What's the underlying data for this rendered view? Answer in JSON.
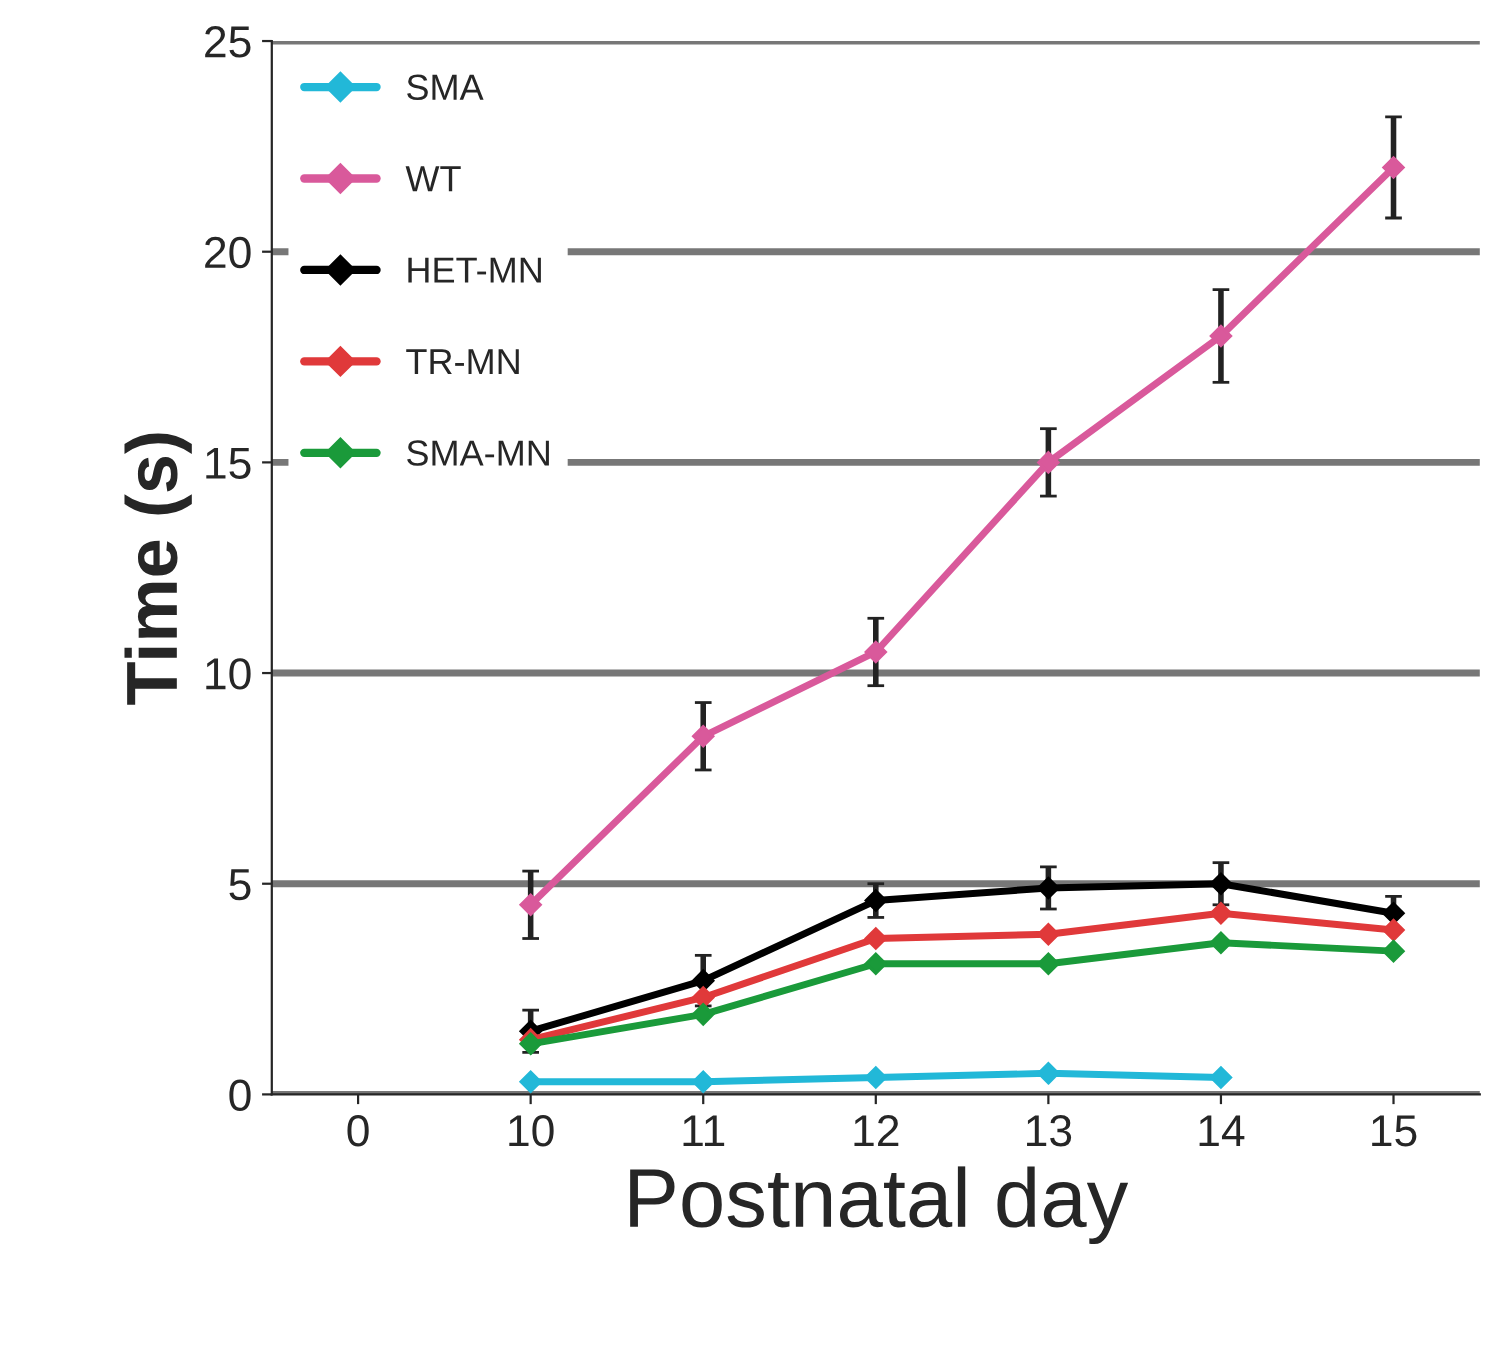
{
  "chart_data": {
    "type": "line",
    "xlabel": "Postnatal day",
    "ylabel": "Time (s)",
    "categories": [
      "0",
      "10",
      "11",
      "12",
      "13",
      "14",
      "15"
    ],
    "ylim": [
      0,
      25
    ],
    "yticks": [
      0,
      5,
      10,
      15,
      20,
      25
    ],
    "grid": "y",
    "legend": "top left",
    "marker": "diamond",
    "line_style": "solid",
    "series": [
      {
        "name": "SMA",
        "color": "#22b8d8",
        "values": [
          null,
          0.3,
          0.3,
          0.4,
          0.5,
          0.4,
          null
        ]
      },
      {
        "name": "WT",
        "color": "#d9599b",
        "values": [
          null,
          4.5,
          8.5,
          10.5,
          15,
          18,
          22
        ],
        "errors": [
          null,
          0.8,
          0.8,
          0.8,
          0.8,
          1.1,
          1.2
        ]
      },
      {
        "name": "HET-MN",
        "color": "#000000",
        "values": [
          null,
          1.5,
          2.7,
          4.6,
          4.9,
          5.0,
          4.3
        ],
        "errors": [
          null,
          0.5,
          0.6,
          0.4,
          0.5,
          0.5,
          0.4
        ]
      },
      {
        "name": "TR-MN",
        "color": "#e0393a",
        "values": [
          null,
          1.3,
          2.3,
          3.7,
          3.8,
          4.3,
          3.9
        ]
      },
      {
        "name": "SMA-MN",
        "color": "#1a9a3a",
        "values": [
          null,
          1.2,
          1.9,
          3.1,
          3.1,
          3.6,
          3.4
        ]
      }
    ]
  }
}
